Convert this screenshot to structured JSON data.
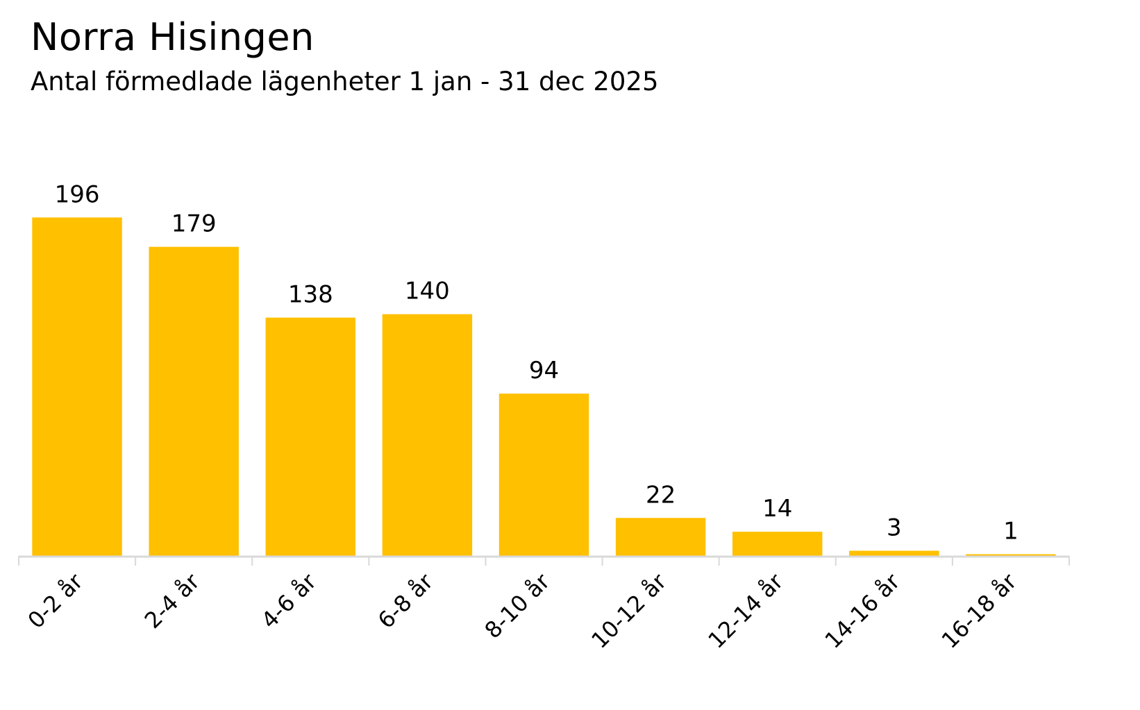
{
  "chart_data": {
    "type": "bar",
    "title": "Norra Hisingen",
    "subtitle": "Antal förmedlade lägenheter 1 jan - 31 dec 2025",
    "categories": [
      "0-2 år",
      "2-4 år",
      "4-6 år",
      "6-8 år",
      "8-10 år",
      "10-12 år",
      "12-14 år",
      "14-16 år",
      "16-18 år"
    ],
    "values": [
      196,
      179,
      138,
      140,
      94,
      22,
      14,
      3,
      1
    ],
    "xlabel": "",
    "ylabel": "",
    "ylim": [
      0,
      250
    ],
    "grid": false,
    "data_labels": true,
    "legend": "none",
    "bar_color": "#FFC000",
    "axis_color": "#D9D9D9"
  }
}
